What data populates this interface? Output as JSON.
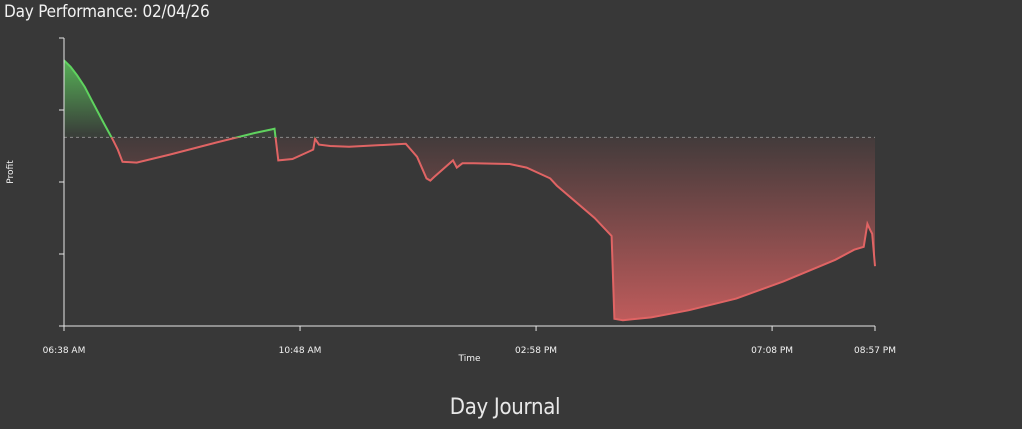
{
  "page": {
    "title": "Day Performance: 02/04/26",
    "section_heading": "Day Journal"
  },
  "colors": {
    "background": "#383838",
    "profit": "#5fd35f",
    "loss": "#e06464",
    "baseline": "#8a8a8a",
    "axis": "#e6e6e6"
  },
  "chart_data": {
    "type": "area",
    "xlabel": "Time",
    "ylabel": "Profit",
    "x_tick_labels": [
      "06:38 AM",
      "10:48 AM",
      "02:58 PM",
      "07:08 PM",
      "08:57 PM"
    ],
    "x_tick_minutes": [
      398,
      648,
      898,
      1148,
      1257
    ],
    "x_range_minutes": [
      398,
      1257
    ],
    "y_tick_count": 5,
    "y_range": [
      0,
      4
    ],
    "baseline": 2.62,
    "grid": false,
    "legend": "none",
    "series": [
      {
        "x": [
          398,
          405,
          412,
          420,
          428,
          440,
          450,
          455,
          460,
          475,
          510,
          560,
          600,
          618,
          621,
          625,
          640,
          662,
          664,
          668,
          680,
          700,
          760,
          762,
          772,
          782,
          786,
          790,
          810,
          814,
          820,
          832,
          870,
          888,
          913,
          920,
          960,
          978,
          981,
          990,
          1020,
          1060,
          1110,
          1160,
          1215,
          1235,
          1245,
          1249,
          1252,
          1254,
          1257
        ],
        "y": [
          3.69,
          3.6,
          3.48,
          3.32,
          3.12,
          2.82,
          2.58,
          2.45,
          2.28,
          2.27,
          2.38,
          2.55,
          2.68,
          2.73,
          2.74,
          2.3,
          2.32,
          2.45,
          2.6,
          2.52,
          2.5,
          2.49,
          2.53,
          2.5,
          2.35,
          2.05,
          2.02,
          2.07,
          2.3,
          2.2,
          2.26,
          2.26,
          2.25,
          2.2,
          2.05,
          1.95,
          1.5,
          1.25,
          0.1,
          0.08,
          0.12,
          0.22,
          0.38,
          0.62,
          0.92,
          1.06,
          1.1,
          1.42,
          1.33,
          1.28,
          0.83
        ]
      }
    ]
  }
}
